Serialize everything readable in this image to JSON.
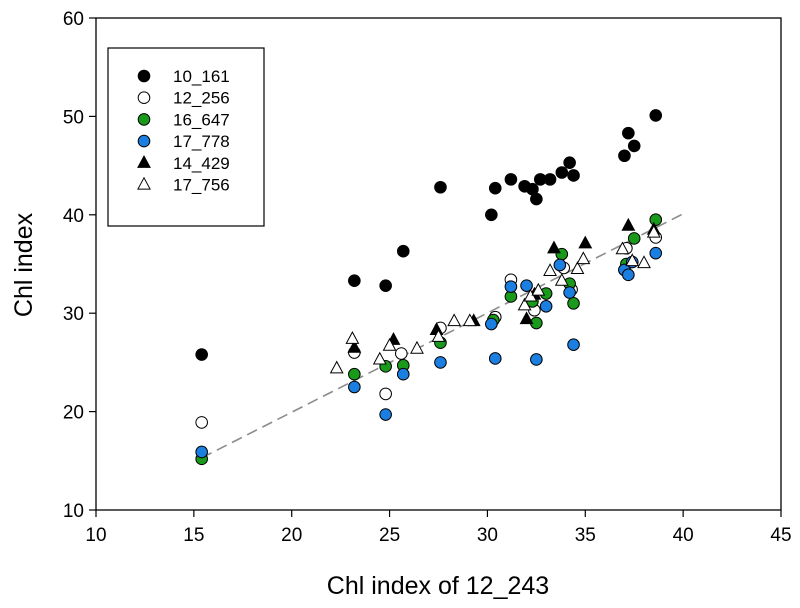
{
  "chart_data": {
    "type": "scatter",
    "xlabel": "Chl index of 12_243",
    "ylabel": "Chl index",
    "xlim": [
      10,
      45
    ],
    "ylim": [
      10,
      60
    ],
    "xticks": [
      10,
      15,
      20,
      25,
      30,
      35,
      40,
      45
    ],
    "yticks": [
      10,
      20,
      30,
      40,
      50,
      60
    ],
    "grid": false,
    "legend_position": "top-left",
    "trendline": {
      "style": "dashed",
      "color": "#8c8c8c",
      "x": [
        15.4,
        40.0
      ],
      "y": [
        15.3,
        40.1
      ]
    },
    "series": [
      {
        "name": "10_161",
        "marker": "circle",
        "fill": "#000000",
        "stroke": "#000000",
        "x": [
          15.4,
          23.2,
          24.8,
          25.7,
          27.6,
          30.2,
          30.4,
          31.2,
          31.9,
          32.3,
          32.5,
          32.7,
          33.2,
          33.8,
          34.2,
          34.4,
          37.0,
          37.2,
          37.5,
          38.6
        ],
        "y": [
          25.8,
          33.3,
          32.8,
          36.3,
          42.8,
          40.0,
          42.7,
          43.6,
          42.9,
          42.6,
          41.6,
          43.6,
          43.6,
          44.3,
          45.3,
          44.0,
          46.0,
          48.3,
          47.0,
          50.1
        ]
      },
      {
        "name": "12_256",
        "marker": "circle",
        "fill": "#ffffff",
        "stroke": "#000000",
        "x": [
          15.4,
          23.2,
          24.8,
          25.6,
          27.6,
          30.4,
          31.2,
          32.4,
          33.9,
          34.3,
          37.1,
          38.6
        ],
        "y": [
          18.9,
          26.0,
          21.8,
          25.9,
          28.5,
          29.6,
          33.4,
          30.3,
          34.6,
          32.4,
          36.6,
          37.7
        ]
      },
      {
        "name": "16_647",
        "marker": "circle",
        "fill": "#1a9a1a",
        "stroke": "#000000",
        "x": [
          15.4,
          23.2,
          24.8,
          25.7,
          27.6,
          30.3,
          31.2,
          32.3,
          32.5,
          33.0,
          33.8,
          34.2,
          34.4,
          37.0,
          37.1,
          37.5,
          38.6
        ],
        "y": [
          15.2,
          23.8,
          24.6,
          24.7,
          27.0,
          29.3,
          31.7,
          31.2,
          29.0,
          32.0,
          36.0,
          33.0,
          31.0,
          34.4,
          35.0,
          37.6,
          39.5
        ]
      },
      {
        "name": "17_778",
        "marker": "circle",
        "fill": "#1a7fe0",
        "stroke": "#000000",
        "x": [
          15.4,
          23.2,
          24.8,
          25.7,
          27.6,
          30.2,
          30.4,
          31.2,
          32.0,
          32.5,
          33.0,
          33.7,
          34.2,
          34.4,
          37.0,
          37.2,
          37.4,
          38.6
        ],
        "y": [
          15.9,
          22.5,
          19.7,
          23.8,
          25.0,
          28.9,
          25.4,
          32.7,
          32.8,
          25.3,
          30.7,
          34.9,
          32.1,
          26.8,
          34.4,
          33.9,
          35.2,
          36.1
        ]
      },
      {
        "name": "14_429",
        "marker": "triangle",
        "fill": "#000000",
        "stroke": "#000000",
        "x": [
          23.2,
          25.2,
          27.4,
          29.3,
          32.0,
          32.4,
          33.4,
          35.0,
          37.2,
          38.5
        ],
        "y": [
          26.5,
          27.3,
          28.3,
          29.2,
          29.4,
          31.9,
          36.6,
          37.1,
          38.9,
          38.5
        ]
      },
      {
        "name": "17_756",
        "marker": "triangle",
        "fill": "#ffffff",
        "stroke": "#000000",
        "x": [
          22.3,
          23.1,
          24.5,
          25.0,
          26.4,
          27.5,
          28.3,
          29.1,
          31.9,
          32.2,
          32.6,
          33.2,
          33.8,
          34.6,
          34.9,
          36.9,
          37.4,
          38.0,
          38.5
        ],
        "y": [
          24.4,
          27.4,
          25.3,
          26.7,
          26.4,
          27.6,
          29.2,
          29.2,
          30.8,
          31.7,
          32.3,
          34.3,
          33.3,
          34.5,
          35.5,
          36.5,
          35.3,
          35.1,
          38.2
        ]
      }
    ]
  }
}
